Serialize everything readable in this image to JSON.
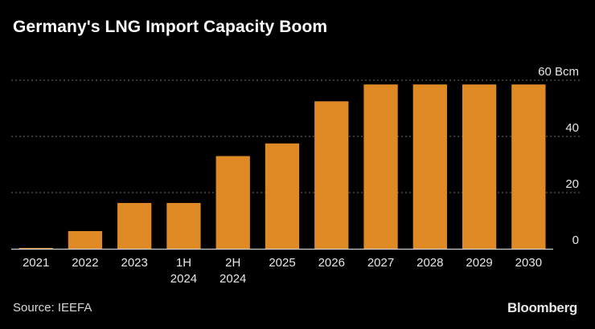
{
  "header": {
    "title": "Germany's LNG Import Capacity Boom"
  },
  "footer": {
    "source": "Source: IEEFA",
    "brand": "Bloomberg"
  },
  "colors": {
    "bar": "#E08A25",
    "background": "#000000",
    "gridline": "#6b6b6b",
    "axis": "#cfcfcf",
    "text": "#ffffff"
  },
  "chart_data": {
    "type": "bar",
    "title": "Germany's LNG Import Capacity Boom",
    "xlabel": "",
    "ylabel": "Bcm",
    "unit_label": "60 Bcm",
    "categories": [
      "2021",
      "2022",
      "2023",
      "1H 2024",
      "2H 2024",
      "2025",
      "2026",
      "2027",
      "2028",
      "2029",
      "2030"
    ],
    "category_lines": [
      [
        "2021"
      ],
      [
        "2022"
      ],
      [
        "2023"
      ],
      [
        "1H",
        "2024"
      ],
      [
        "2H",
        "2024"
      ],
      [
        "2025"
      ],
      [
        "2026"
      ],
      [
        "2027"
      ],
      [
        "2028"
      ],
      [
        "2029"
      ],
      [
        "2030"
      ]
    ],
    "values": [
      0.3,
      6.3,
      16.3,
      16.3,
      33,
      37.5,
      52.5,
      58.5,
      58.5,
      58.5,
      58.5
    ],
    "ylim": [
      0,
      60
    ],
    "yticks": [
      0,
      20,
      40,
      60
    ],
    "ytick_labels": [
      "0",
      "20",
      "40",
      "60 Bcm"
    ],
    "grid": true,
    "legend": "none"
  }
}
